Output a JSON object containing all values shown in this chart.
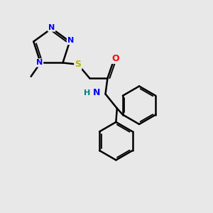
{
  "bg_color": "#e8e8e8",
  "atom_colors": {
    "N": "#0000ff",
    "S": "#b8b800",
    "O": "#ff0000",
    "C": "#000000",
    "H": "#008080"
  },
  "bond_color": "#000000",
  "bond_width": 1.8,
  "figsize": [
    3.0,
    3.0
  ],
  "dpi": 100,
  "xlim": [
    0,
    10
  ],
  "ylim": [
    0,
    10
  ]
}
